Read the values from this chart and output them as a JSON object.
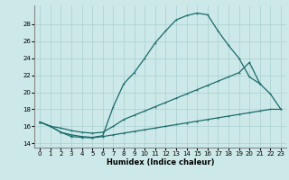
{
  "xlabel": "Humidex (Indice chaleur)",
  "background_color": "#cce8e8",
  "grid_color": "#aad0d0",
  "line_color": "#1a6b6b",
  "xlim": [
    -0.5,
    23.5
  ],
  "ylim": [
    13.5,
    30.2
  ],
  "xticks": [
    0,
    1,
    2,
    3,
    4,
    5,
    6,
    7,
    8,
    9,
    10,
    11,
    12,
    13,
    14,
    15,
    16,
    17,
    18,
    19,
    20,
    21,
    22,
    23
  ],
  "yticks": [
    14,
    16,
    18,
    20,
    22,
    24,
    26,
    28
  ],
  "line1_x": [
    0,
    1,
    2,
    3,
    4,
    5,
    6,
    7,
    8,
    9,
    10,
    11,
    12,
    13,
    14,
    15,
    16,
    17,
    18,
    19,
    20,
    21
  ],
  "line1_y": [
    16.5,
    16.0,
    15.3,
    15.0,
    14.8,
    14.7,
    14.9,
    18.3,
    21.0,
    22.3,
    24.0,
    25.8,
    27.2,
    28.5,
    29.0,
    29.3,
    29.1,
    27.2,
    25.5,
    24.0,
    21.8,
    21.0
  ],
  "line2_x": [
    0,
    1,
    2,
    3,
    4,
    5,
    6,
    7,
    8,
    9,
    10,
    11,
    12,
    13,
    14,
    15,
    16,
    17,
    18,
    19,
    20,
    21,
    22,
    23
  ],
  "line2_y": [
    16.5,
    16.0,
    15.8,
    15.5,
    15.3,
    15.2,
    15.3,
    16.0,
    16.8,
    17.3,
    17.8,
    18.3,
    18.8,
    19.3,
    19.8,
    20.3,
    20.8,
    21.3,
    21.8,
    22.3,
    23.5,
    21.0,
    19.8,
    18.0
  ],
  "line3_x": [
    0,
    1,
    2,
    3,
    4,
    5,
    6,
    7,
    8,
    9,
    10,
    11,
    12,
    13,
    14,
    15,
    16,
    17,
    18,
    19,
    20,
    21,
    22,
    23
  ],
  "line3_y": [
    16.5,
    16.0,
    15.3,
    14.8,
    14.7,
    14.65,
    14.8,
    15.0,
    15.2,
    15.4,
    15.6,
    15.8,
    16.0,
    16.2,
    16.4,
    16.6,
    16.8,
    17.0,
    17.2,
    17.4,
    17.6,
    17.8,
    18.0,
    18.0
  ]
}
